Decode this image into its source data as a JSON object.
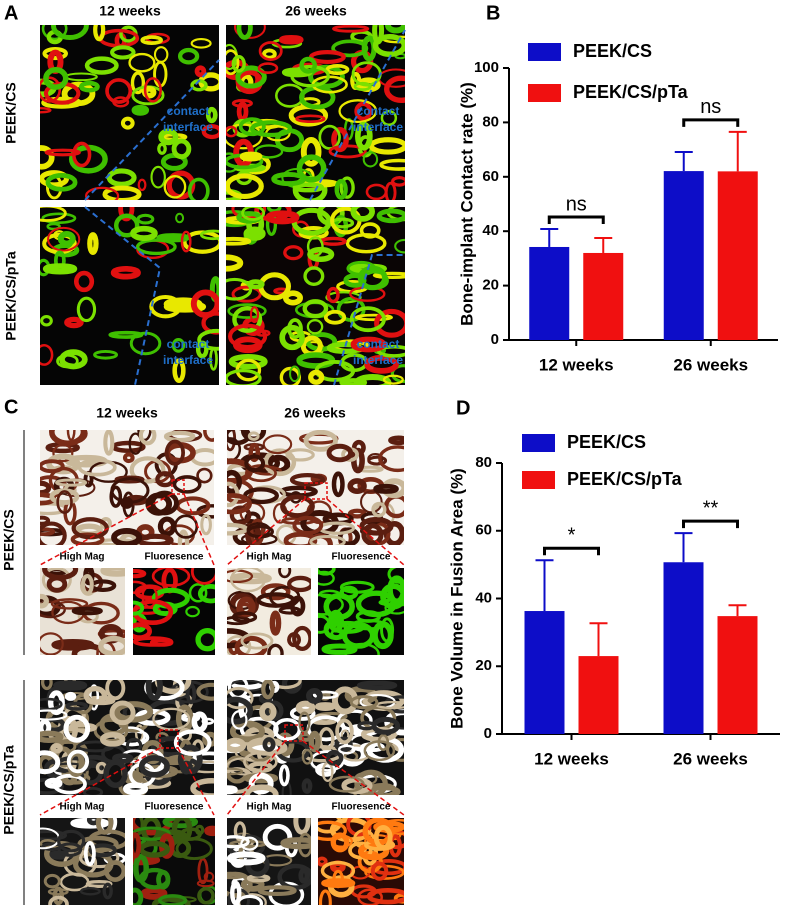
{
  "panels": {
    "A": {
      "label": "A",
      "columns": [
        "12 weeks",
        "26 weeks"
      ],
      "rows": [
        "PEEK/CS",
        "PEEK/CS/pTa"
      ],
      "annotation_lines": [
        "contact",
        "interface"
      ]
    },
    "C": {
      "label": "C",
      "columns": [
        "12 weeks",
        "26 weeks"
      ],
      "rows": [
        "PEEK/CS",
        "PEEK/CS/pTa"
      ],
      "insets": [
        "High Mag",
        "Fluoresence"
      ]
    }
  },
  "chart_data": [
    {
      "type": "bar",
      "label": "B",
      "y_label": "Bone-implant Contact rate (%)",
      "categories": [
        "12 weeks",
        "26 weeks"
      ],
      "series": [
        {
          "name": "PEEK/CS",
          "color": "#0d0dc8",
          "values": [
            34.2,
            62.1
          ],
          "errors": [
            6.6,
            7
          ]
        },
        {
          "name": "PEEK/CS/pTa",
          "color": "#f01010",
          "values": [
            32,
            62
          ],
          "errors": [
            5.5,
            14.5
          ]
        }
      ],
      "annotations": [
        "ns",
        "ns"
      ],
      "ylim": [
        0,
        100
      ],
      "yticks": [
        0,
        20,
        40,
        60,
        80,
        100
      ],
      "legend": "top-left"
    },
    {
      "type": "bar",
      "label": "D",
      "y_label": "Bone Volume in Fusion Area (%)",
      "categories": [
        "12 weeks",
        "26 weeks"
      ],
      "series": [
        {
          "name": "PEEK/CS",
          "color": "#0d0dc8",
          "values": [
            36.3,
            50.7
          ],
          "errors": [
            15,
            8.6
          ]
        },
        {
          "name": "PEEK/CS/pTa",
          "color": "#f01010",
          "values": [
            23,
            34.8
          ],
          "errors": [
            9.7,
            3.2
          ]
        }
      ],
      "annotations": [
        "*",
        "**"
      ],
      "ylim": [
        0,
        80
      ],
      "yticks": [
        0,
        20,
        40,
        60,
        80
      ],
      "legend": "top-left"
    }
  ]
}
